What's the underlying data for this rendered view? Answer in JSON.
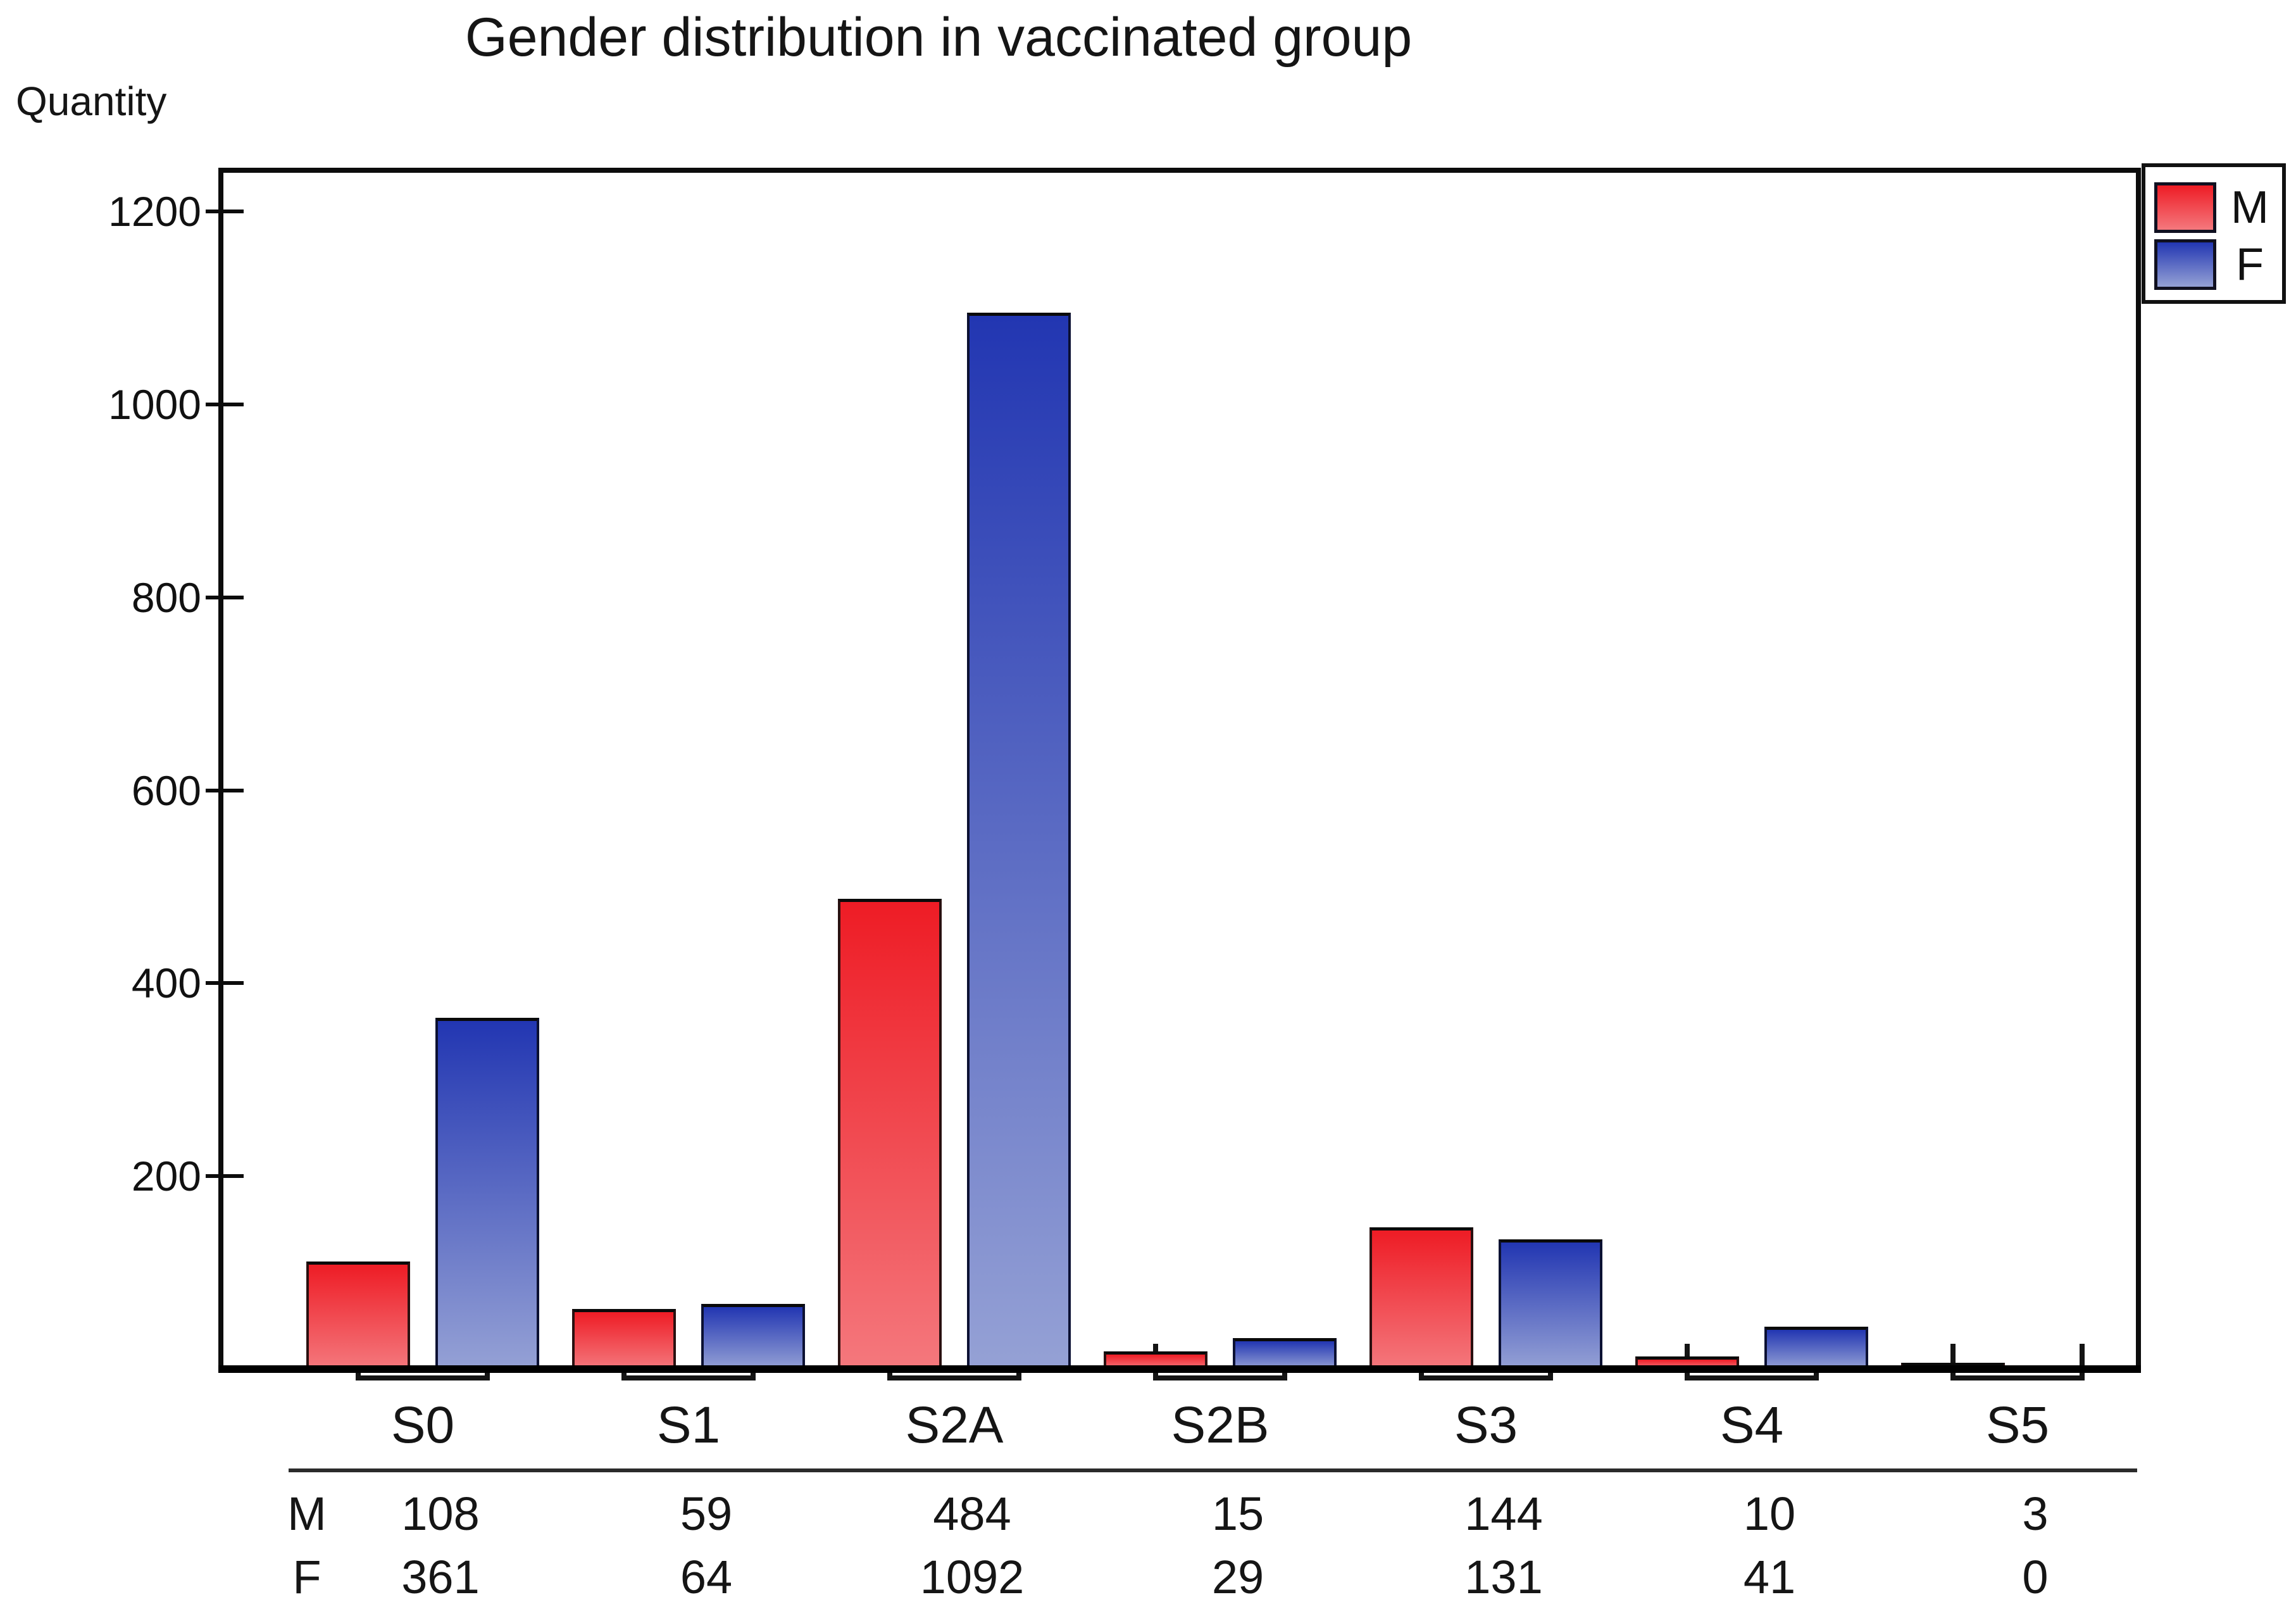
{
  "title": "Gender distribution in vaccinated group",
  "y_axis": {
    "label": "Quantity",
    "ticks": [
      200,
      400,
      600,
      800,
      1000,
      1200
    ]
  },
  "legend": {
    "items": [
      {
        "label": "M"
      },
      {
        "label": "F"
      }
    ]
  },
  "chart_data": {
    "type": "bar",
    "title": "Gender distribution in vaccinated group",
    "xlabel": "",
    "ylabel": "Quantity",
    "categories": [
      "S0",
      "S1",
      "S2A",
      "S2B",
      "S3",
      "S4",
      "S5"
    ],
    "series": [
      {
        "name": "M",
        "values": [
          108,
          59,
          484,
          15,
          144,
          10,
          3
        ],
        "color_top": "#ee1c25",
        "color_bottom": "#f4787d"
      },
      {
        "name": "F",
        "values": [
          361,
          64,
          1092,
          29,
          131,
          41,
          0
        ],
        "color_top": "#2236b2",
        "color_bottom": "#95a1d5"
      }
    ],
    "yticks": [
      200,
      400,
      600,
      800,
      1000,
      1200
    ],
    "ylim": [
      0,
      1245
    ],
    "grid": false,
    "legend_position": "top-right"
  },
  "table": {
    "row_labels": [
      "M",
      "F"
    ],
    "rows": [
      [
        "108",
        "59",
        "484",
        "15",
        "144",
        "10",
        "3"
      ],
      [
        "361",
        "64",
        "1092",
        "29",
        "131",
        "41",
        "0"
      ]
    ]
  }
}
